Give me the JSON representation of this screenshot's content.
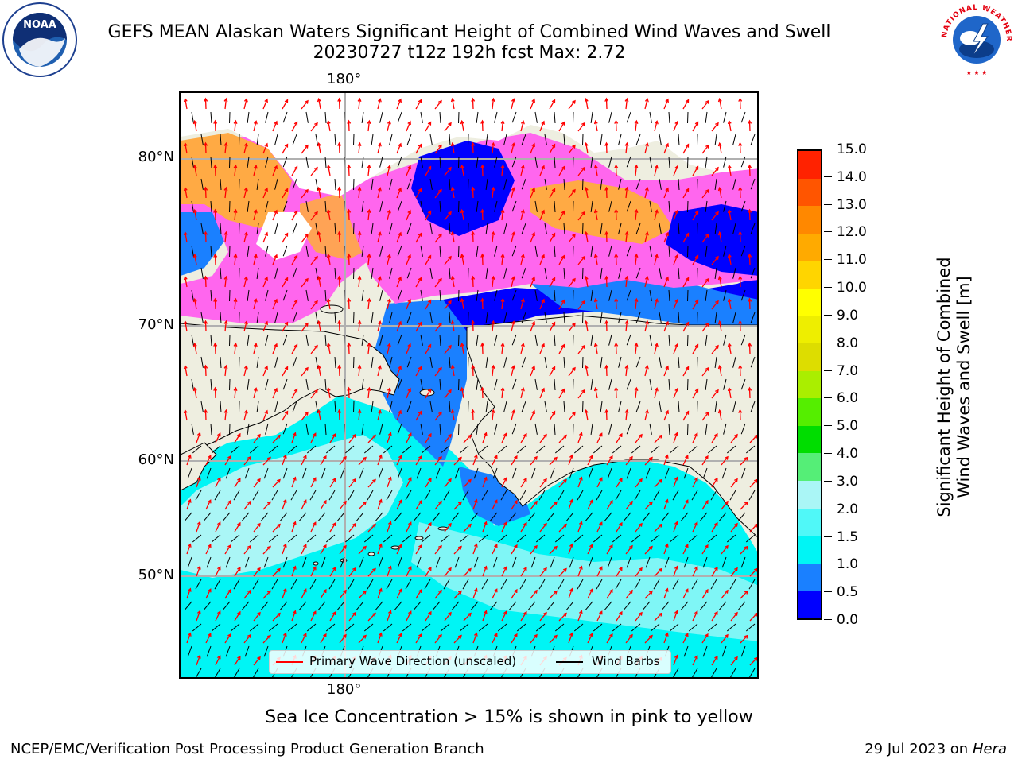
{
  "title": {
    "line1": "GEFS MEAN Alaskan Waters Significant Height of Combined Wind Waves and Swell",
    "line2": "20230727 t12z 192h fcst   Max: 2.72"
  },
  "logos": {
    "left": {
      "name": "noaa-logo",
      "text": "NOAA"
    },
    "right": {
      "name": "national-weather-service-logo",
      "text": "NATIONAL WEATHER SERVICE"
    }
  },
  "map": {
    "lon_labels": {
      "top": "180°",
      "bottom": "180°"
    },
    "lat_labels": [
      "80°N",
      "70°N",
      "60°N",
      "50°N"
    ],
    "colors": {
      "land": "#eeeee0",
      "ice_pink": "#ff66ee",
      "ice_orange": "#ffaa44",
      "ocean_deep_blue": "#0000ff",
      "ocean_blue": "#1a80ff",
      "ocean_cyan": "#00f5f5",
      "ocean_light": "#aaf6f6",
      "wave_arrow": "#ff0000",
      "wind_barb": "#000000",
      "grid": "#b0b0b0"
    }
  },
  "legend": {
    "wave_label": "Primary Wave Direction (unscaled)",
    "wind_label": "Wind Barbs"
  },
  "colorbar": {
    "title_line1": "Significant Height of Combined",
    "title_line2": "Wind Waves and Swell [m]",
    "ticks": [
      "0.0",
      "0.5",
      "1.0",
      "1.5",
      "2.0",
      "3.0",
      "4.0",
      "5.0",
      "6.0",
      "7.0",
      "8.0",
      "9.0",
      "10.0",
      "11.0",
      "12.0",
      "13.0",
      "14.0",
      "15.0"
    ],
    "colors": [
      "#0000ff",
      "#1a80ff",
      "#00f5f5",
      "#50f8f8",
      "#aaf6f6",
      "#55ee77",
      "#00dd00",
      "#55ee00",
      "#aaee00",
      "#dddd00",
      "#eeee00",
      "#ffff00",
      "#ffd500",
      "#ffaa00",
      "#ff8800",
      "#ff5500",
      "#ff2200",
      "#ff0000"
    ]
  },
  "caption": "Sea Ice Concentration > 15% is shown in pink to yellow",
  "footer": {
    "left": "NCEP/EMC/Verification Post Processing Product Generation Branch",
    "right_date": "29 Jul 2023 on ",
    "right_host": "Hera"
  }
}
